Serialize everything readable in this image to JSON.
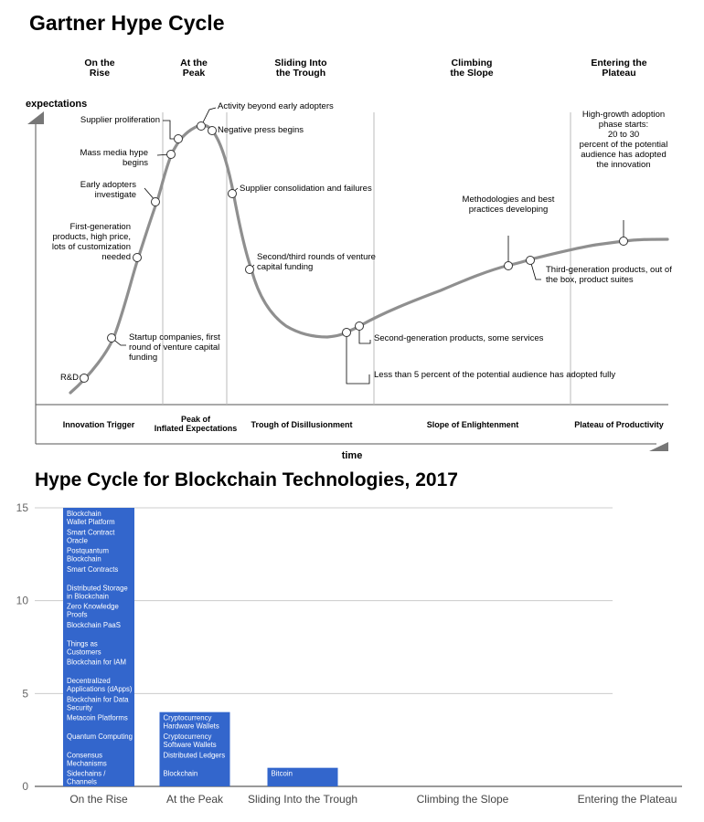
{
  "hype": {
    "title": "Gartner Hype Cycle",
    "phase_headers": [
      [
        "On the",
        "Rise"
      ],
      [
        "At the",
        "Peak"
      ],
      [
        "Sliding Into",
        "the Trough"
      ],
      [
        "Climbing",
        "the Slope"
      ],
      [
        "Entering the",
        "Plateau"
      ]
    ],
    "y_label": "expectations",
    "x_label": "time",
    "phase_names": [
      [
        "Innovation Trigger"
      ],
      [
        "Peak of",
        "Inflated Expectations"
      ],
      [
        "Trough of Disillusionment"
      ],
      [
        "Slope of Enlightenment"
      ],
      [
        "Plateau of Productivity"
      ]
    ],
    "annotations": [
      [
        "R&D"
      ],
      [
        "Startup companies, first",
        "round of venture capital",
        "funding"
      ],
      [
        "First-generation",
        "products, high price,",
        "lots of customization",
        "needed"
      ],
      [
        "Early adopters",
        "investigate"
      ],
      [
        "Mass media hype",
        "begins"
      ],
      [
        "Supplier proliferation"
      ],
      [
        "Activity beyond early adopters"
      ],
      [
        "Negative press begins"
      ],
      [
        "Supplier consolidation and failures"
      ],
      [
        "Second/third rounds of venture",
        "capital funding"
      ],
      [
        "Less than 5 percent of the potential audience has adopted fully"
      ],
      [
        "Second-generation products, some services"
      ],
      [
        "Methodologies and best",
        "practices developing"
      ],
      [
        "Third-generation products, out of",
        "the box, product suites"
      ],
      [
        "High-growth adoption",
        "phase starts:",
        "20 to 30",
        "percent of the potential",
        "audience has adopted",
        "the innovation"
      ]
    ]
  },
  "chart_data": {
    "type": "bar",
    "title": "Hype Cycle for Blockchain Technologies, 2017",
    "categories": [
      "On the Rise",
      "At the Peak",
      "Sliding Into the Trough",
      "Climbing the Slope",
      "Entering the Plateau"
    ],
    "values": [
      15,
      4,
      1,
      0,
      0
    ],
    "ylim": [
      0,
      15
    ],
    "yticks": [
      0,
      5,
      10,
      15
    ],
    "grid": true,
    "bar_color": "#3366cc",
    "stacked_labels": [
      [
        [
          "Blockchain",
          "Wallet  Platform"
        ],
        [
          "Smart Contract",
          "Oracle"
        ],
        [
          "Postquantum",
          "Blockchain"
        ],
        [
          "Smart Contracts"
        ],
        [
          "Distributed Storage",
          "in Blockchain"
        ],
        [
          "Zero Knowledge",
          "Proofs"
        ],
        [
          "Blockchain PaaS"
        ],
        [
          "Things as",
          "Customers"
        ],
        [
          "Blockchain for IAM"
        ],
        [
          "Decentralized",
          "Applications (dApps)"
        ],
        [
          "Blockchain for Data",
          "Security"
        ],
        [
          "Metacoin Platforms"
        ],
        [
          "Quantum Computing"
        ],
        [
          "Consensus",
          "Mechanisms"
        ],
        [
          "Sidechains /",
          "Channels"
        ]
      ],
      [
        [
          "Cryptocurrency",
          "Hardware Wallets"
        ],
        [
          "Cryptocurrency",
          "Software Wallets"
        ],
        [
          "Distributed Ledgers"
        ],
        [
          "Blockchain"
        ]
      ],
      [
        [
          "Bitcoin"
        ]
      ],
      [],
      []
    ]
  }
}
